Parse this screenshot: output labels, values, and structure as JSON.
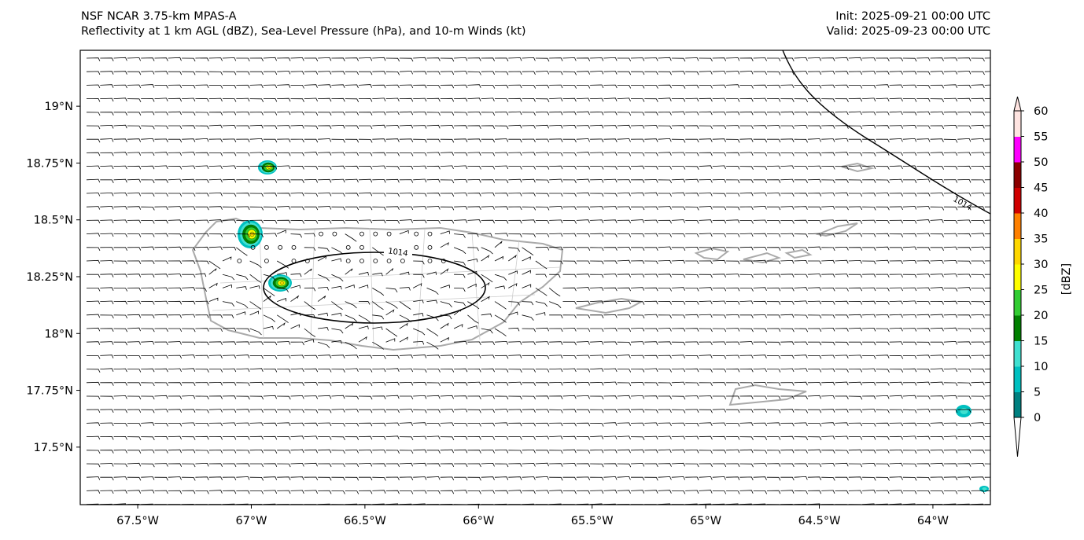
{
  "header": {
    "model": "NSF NCAR 3.75-km MPAS-A",
    "fields": "Reflectivity at 1 km AGL (dBZ), Sea-Level Pressure (hPa), and 10-m Winds (kt)",
    "init": "Init: 2025-09-21 00:00 UTC",
    "valid": "Valid: 2025-09-23 00:00 UTC"
  },
  "map": {
    "extent_lon": [
      -67.753,
      -63.747
    ],
    "extent_lat": [
      17.247,
      19.246
    ],
    "lon_ticks": [
      {
        "value": -67.5,
        "label": "67.5°W"
      },
      {
        "value": -67.0,
        "label": "67°W"
      },
      {
        "value": -66.5,
        "label": "66.5°W"
      },
      {
        "value": -66.0,
        "label": "66°W"
      },
      {
        "value": -65.5,
        "label": "65.5°W"
      },
      {
        "value": -65.0,
        "label": "65°W"
      },
      {
        "value": -64.5,
        "label": "64.5°W"
      },
      {
        "value": -64.0,
        "label": "64°W"
      }
    ],
    "lat_ticks": [
      {
        "value": 19.0,
        "label": "19°N"
      },
      {
        "value": 18.75,
        "label": "18.75°N"
      },
      {
        "value": 18.5,
        "label": "18.5°N"
      },
      {
        "value": 18.25,
        "label": "18.25°N"
      },
      {
        "value": 18.0,
        "label": "18°N"
      },
      {
        "value": 17.75,
        "label": "17.75°N"
      },
      {
        "value": 17.5,
        "label": "17.5°N"
      }
    ],
    "contour_labels": [
      "1014",
      "1014"
    ],
    "coast_color": "#aaaaaa",
    "barb_color": "#000000"
  },
  "colorbar": {
    "label": "[dBZ]",
    "ticks": [
      "0",
      "5",
      "10",
      "15",
      "20",
      "25",
      "30",
      "35",
      "40",
      "45",
      "50",
      "55",
      "60"
    ],
    "colors": [
      "#008080",
      "#00c0c0",
      "#40e0d0",
      "#008000",
      "#32cd32",
      "#ffff00",
      "#ffd700",
      "#ff8000",
      "#d00000",
      "#8b0000",
      "#ff00ff",
      "#ffe4e1"
    ],
    "under_color": "#ffffff",
    "over_color": "#ffe4e1"
  }
}
